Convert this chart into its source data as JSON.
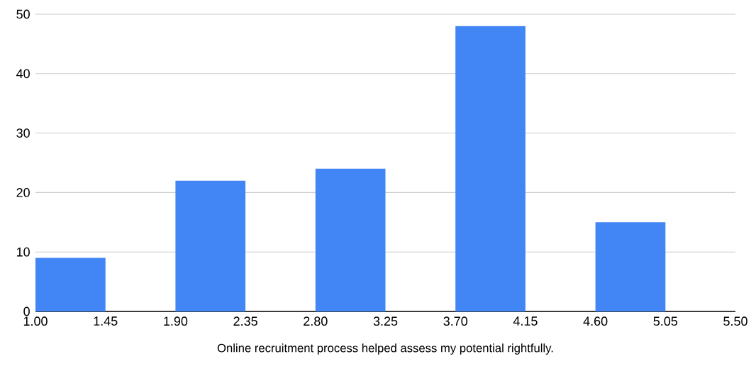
{
  "chart_data": {
    "type": "histogram",
    "xlabel": "Online recruitment process helped assess my potential rightfully.",
    "bins": [
      1.0,
      1.45,
      1.9,
      2.35,
      2.8,
      3.25,
      3.7,
      4.15,
      4.6,
      5.05,
      5.5
    ],
    "values": [
      9,
      0,
      22,
      0,
      24,
      0,
      48,
      0,
      15,
      0
    ],
    "color": "#4285f4",
    "xlim": [
      1.0,
      5.5
    ],
    "xticks": [
      {
        "value": 1.0,
        "label": "1.00"
      },
      {
        "value": 1.45,
        "label": "1.45"
      },
      {
        "value": 1.9,
        "label": "1.90"
      },
      {
        "value": 2.35,
        "label": "2.35"
      },
      {
        "value": 2.8,
        "label": "2.80"
      },
      {
        "value": 3.25,
        "label": "3.25"
      },
      {
        "value": 3.7,
        "label": "3.70"
      },
      {
        "value": 4.15,
        "label": "4.15"
      },
      {
        "value": 4.6,
        "label": "4.60"
      },
      {
        "value": 5.05,
        "label": "5.05"
      },
      {
        "value": 5.5,
        "label": "5.50"
      }
    ],
    "ylim": [
      0,
      50
    ],
    "yticks": [
      0,
      10,
      20,
      30,
      40,
      50
    ],
    "grid": "y"
  }
}
